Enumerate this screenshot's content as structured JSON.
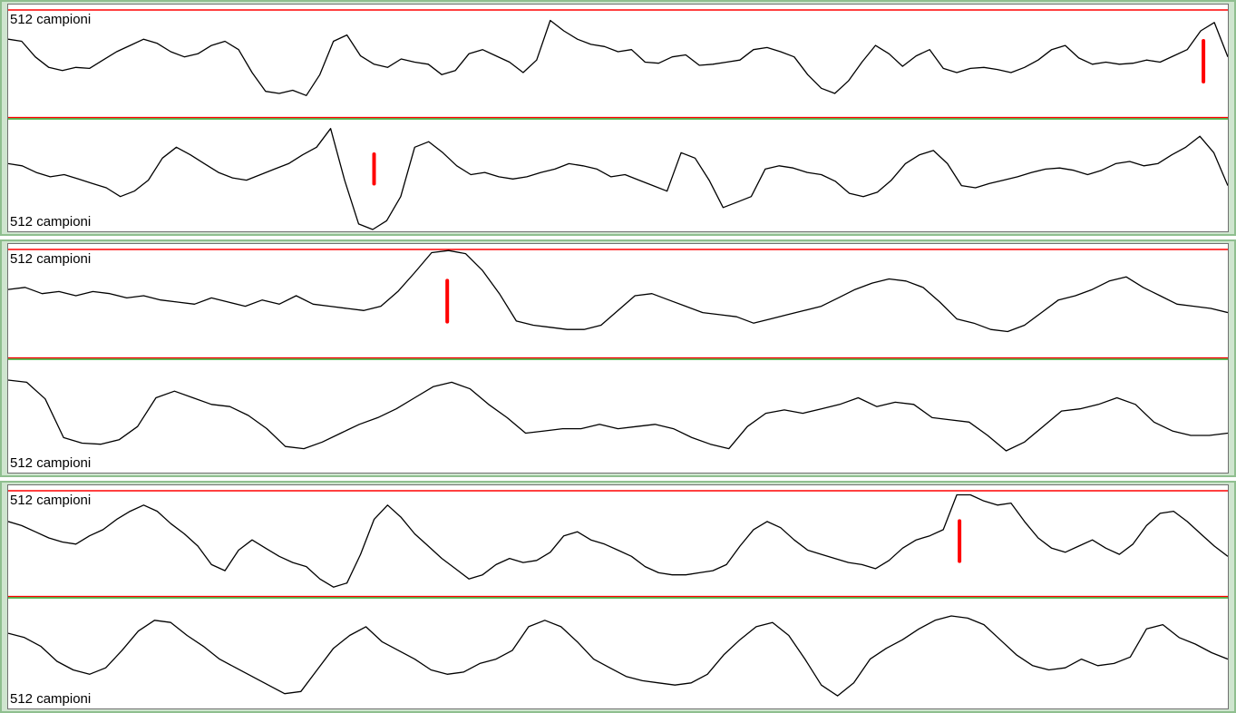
{
  "panels": [
    {
      "top_label": "512 campioni",
      "bottom_label": "512 campioni",
      "top_marker": 0.98,
      "bottom_marker": 0.3,
      "top_wave": [
        0.72,
        0.7,
        0.55,
        0.45,
        0.42,
        0.45,
        0.44,
        0.52,
        0.6,
        0.66,
        0.72,
        0.68,
        0.6,
        0.55,
        0.58,
        0.66,
        0.7,
        0.62,
        0.4,
        0.22,
        0.2,
        0.23,
        0.18,
        0.38,
        0.7,
        0.76,
        0.56,
        0.48,
        0.45,
        0.53,
        0.5,
        0.48,
        0.38,
        0.42,
        0.58,
        0.62,
        0.56,
        0.5,
        0.4,
        0.52,
        0.9,
        0.8,
        0.72,
        0.67,
        0.65,
        0.6,
        0.62,
        0.5,
        0.49,
        0.55,
        0.57,
        0.47,
        0.48,
        0.5,
        0.52,
        0.62,
        0.64,
        0.6,
        0.55,
        0.38,
        0.25,
        0.2,
        0.32,
        0.5,
        0.66,
        0.58,
        0.46,
        0.56,
        0.62,
        0.44,
        0.4,
        0.44,
        0.45,
        0.43,
        0.4,
        0.45,
        0.52,
        0.62,
        0.66,
        0.54,
        0.48,
        0.5,
        0.48,
        0.49,
        0.52,
        0.5,
        0.56,
        0.62,
        0.8,
        0.88,
        0.55
      ],
      "bottom_wave": [
        0.6,
        0.58,
        0.52,
        0.48,
        0.5,
        0.46,
        0.42,
        0.38,
        0.3,
        0.35,
        0.45,
        0.65,
        0.75,
        0.68,
        0.6,
        0.52,
        0.47,
        0.45,
        0.5,
        0.55,
        0.6,
        0.68,
        0.75,
        0.92,
        0.45,
        0.05,
        0.0,
        0.08,
        0.3,
        0.75,
        0.8,
        0.7,
        0.58,
        0.5,
        0.52,
        0.48,
        0.46,
        0.48,
        0.52,
        0.55,
        0.6,
        0.58,
        0.55,
        0.48,
        0.5,
        0.45,
        0.4,
        0.35,
        0.7,
        0.65,
        0.45,
        0.2,
        0.25,
        0.3,
        0.55,
        0.58,
        0.56,
        0.52,
        0.5,
        0.44,
        0.33,
        0.3,
        0.34,
        0.45,
        0.6,
        0.68,
        0.72,
        0.6,
        0.4,
        0.38,
        0.42,
        0.45,
        0.48,
        0.52,
        0.55,
        0.56,
        0.54,
        0.5,
        0.54,
        0.6,
        0.62,
        0.58,
        0.6,
        0.68,
        0.75,
        0.85,
        0.7,
        0.4
      ]
    },
    {
      "top_label": "512 campioni",
      "bottom_label": "512 campioni",
      "top_marker": 0.36,
      "bottom_marker": null,
      "top_wave": [
        0.62,
        0.64,
        0.58,
        0.6,
        0.56,
        0.6,
        0.58,
        0.54,
        0.56,
        0.52,
        0.5,
        0.48,
        0.54,
        0.5,
        0.46,
        0.52,
        0.48,
        0.56,
        0.48,
        0.46,
        0.44,
        0.42,
        0.46,
        0.6,
        0.78,
        0.97,
        0.99,
        0.96,
        0.8,
        0.58,
        0.32,
        0.28,
        0.26,
        0.24,
        0.24,
        0.28,
        0.42,
        0.56,
        0.58,
        0.52,
        0.46,
        0.4,
        0.38,
        0.36,
        0.3,
        0.34,
        0.38,
        0.42,
        0.46,
        0.54,
        0.62,
        0.68,
        0.72,
        0.7,
        0.64,
        0.5,
        0.34,
        0.3,
        0.24,
        0.22,
        0.28,
        0.4,
        0.52,
        0.56,
        0.62,
        0.7,
        0.74,
        0.64,
        0.56,
        0.48,
        0.46,
        0.44,
        0.4
      ],
      "bottom_wave": [
        0.82,
        0.8,
        0.65,
        0.3,
        0.25,
        0.24,
        0.28,
        0.4,
        0.66,
        0.72,
        0.66,
        0.6,
        0.58,
        0.5,
        0.38,
        0.22,
        0.2,
        0.26,
        0.34,
        0.42,
        0.48,
        0.56,
        0.66,
        0.76,
        0.8,
        0.74,
        0.6,
        0.48,
        0.34,
        0.36,
        0.38,
        0.38,
        0.42,
        0.38,
        0.4,
        0.42,
        0.38,
        0.3,
        0.24,
        0.2,
        0.4,
        0.52,
        0.55,
        0.52,
        0.56,
        0.6,
        0.66,
        0.58,
        0.62,
        0.6,
        0.48,
        0.46,
        0.44,
        0.32,
        0.18,
        0.26,
        0.4,
        0.54,
        0.56,
        0.6,
        0.66,
        0.6,
        0.44,
        0.36,
        0.32,
        0.32,
        0.34
      ]
    },
    {
      "top_label": "512 campioni",
      "bottom_label": "512 campioni",
      "top_marker": 0.78,
      "bottom_marker": null,
      "top_wave": [
        0.7,
        0.66,
        0.6,
        0.54,
        0.5,
        0.48,
        0.56,
        0.62,
        0.72,
        0.8,
        0.86,
        0.8,
        0.68,
        0.58,
        0.46,
        0.28,
        0.22,
        0.42,
        0.52,
        0.44,
        0.36,
        0.3,
        0.26,
        0.14,
        0.06,
        0.1,
        0.38,
        0.72,
        0.86,
        0.74,
        0.58,
        0.46,
        0.34,
        0.24,
        0.14,
        0.18,
        0.28,
        0.34,
        0.3,
        0.32,
        0.4,
        0.56,
        0.6,
        0.52,
        0.48,
        0.42,
        0.36,
        0.26,
        0.2,
        0.18,
        0.18,
        0.2,
        0.22,
        0.28,
        0.46,
        0.62,
        0.7,
        0.64,
        0.52,
        0.42,
        0.38,
        0.34,
        0.3,
        0.28,
        0.24,
        0.32,
        0.44,
        0.52,
        0.56,
        0.62,
        0.96,
        0.96,
        0.9,
        0.86,
        0.88,
        0.7,
        0.54,
        0.44,
        0.4,
        0.46,
        0.52,
        0.44,
        0.38,
        0.48,
        0.66,
        0.78,
        0.8,
        0.7,
        0.58,
        0.46,
        0.36
      ],
      "bottom_wave": [
        0.68,
        0.64,
        0.56,
        0.42,
        0.34,
        0.3,
        0.36,
        0.52,
        0.7,
        0.8,
        0.78,
        0.66,
        0.56,
        0.44,
        0.36,
        0.28,
        0.2,
        0.12,
        0.14,
        0.34,
        0.54,
        0.66,
        0.74,
        0.6,
        0.52,
        0.44,
        0.34,
        0.3,
        0.32,
        0.4,
        0.44,
        0.52,
        0.74,
        0.8,
        0.74,
        0.6,
        0.44,
        0.36,
        0.28,
        0.24,
        0.22,
        0.2,
        0.22,
        0.3,
        0.48,
        0.62,
        0.74,
        0.78,
        0.66,
        0.44,
        0.2,
        0.1,
        0.22,
        0.44,
        0.54,
        0.62,
        0.72,
        0.8,
        0.84,
        0.82,
        0.76,
        0.62,
        0.48,
        0.38,
        0.34,
        0.36,
        0.44,
        0.38,
        0.4,
        0.46,
        0.72,
        0.76,
        0.64,
        0.58,
        0.5,
        0.44
      ]
    }
  ],
  "colors": {
    "signal": "#000000",
    "threshold_top": "#ff0000",
    "threshold_mid": "#ff0000",
    "mid_accent": "#22aa22",
    "marker": "#ff0000",
    "frame": "#8fbf8f"
  }
}
